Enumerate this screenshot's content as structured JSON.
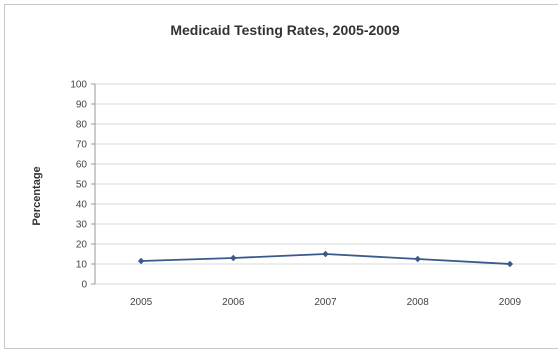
{
  "chart_data": {
    "type": "line",
    "title": "Medicaid Testing Rates, 2005-2009",
    "xlabel": "",
    "ylabel": "Percentage",
    "ylim": [
      0,
      100
    ],
    "yticks": [
      0,
      10,
      20,
      30,
      40,
      50,
      60,
      70,
      80,
      90,
      100
    ],
    "categories": [
      "2005",
      "2006",
      "2007",
      "2008",
      "2009"
    ],
    "series": [
      {
        "values": [
          11.5,
          13,
          15,
          12.5,
          10
        ]
      }
    ],
    "grid": true,
    "legend": "none",
    "colors": {
      "line": "#3a5a8c",
      "grid": "#d9d9d9",
      "axis": "#999999"
    }
  }
}
